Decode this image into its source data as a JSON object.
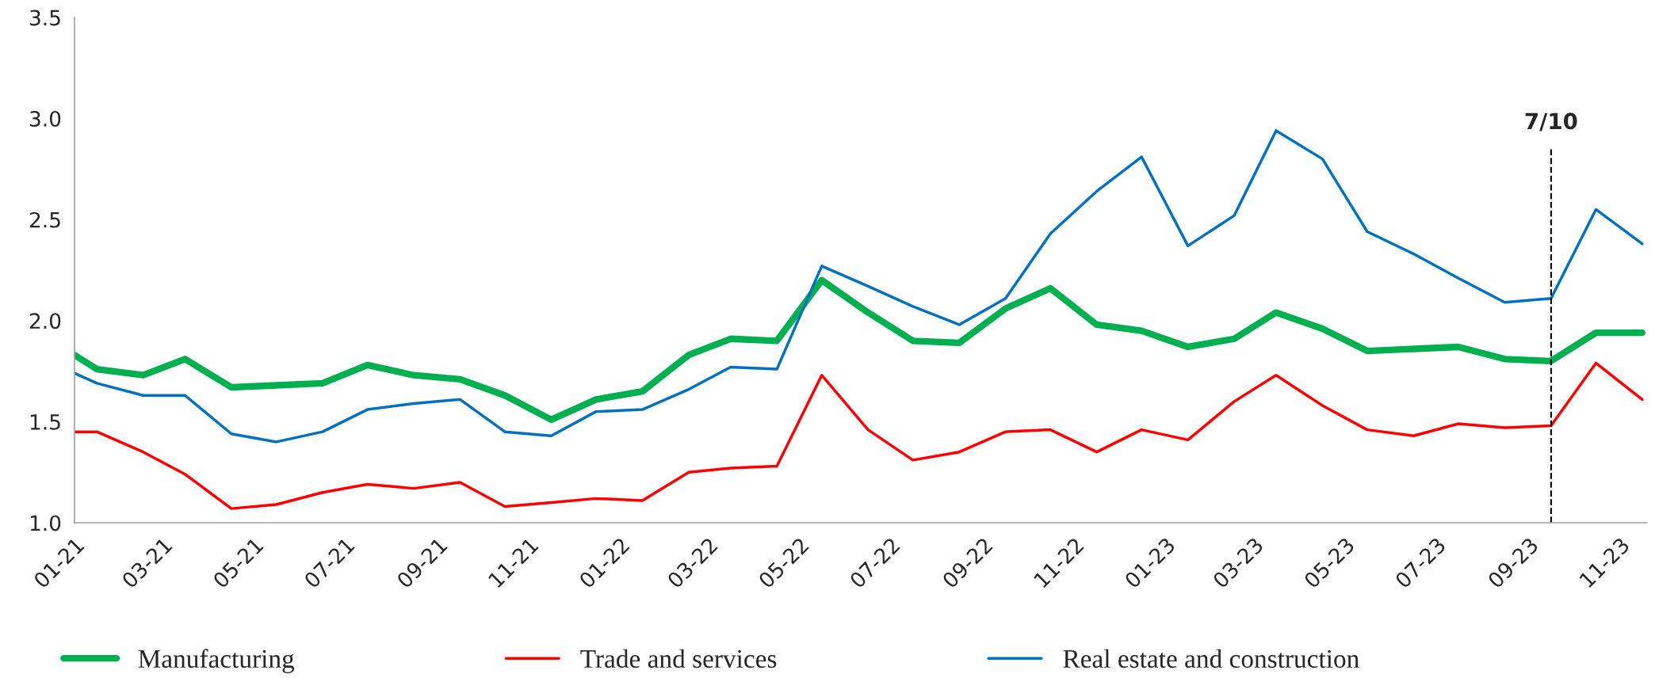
{
  "chart_data": {
    "type": "line",
    "x": [
      "2021-01-01",
      "2021-01-16",
      "2021-02-16",
      "2021-03-16",
      "2021-04-16",
      "2021-05-16",
      "2021-06-16",
      "2021-07-16",
      "2021-08-16",
      "2021-09-16",
      "2021-10-16",
      "2021-11-16",
      "2021-12-16",
      "2022-01-16",
      "2022-02-16",
      "2022-03-16",
      "2022-04-16",
      "2022-05-16",
      "2022-06-16",
      "2022-07-16",
      "2022-08-16",
      "2022-09-16",
      "2022-10-16",
      "2022-11-16",
      "2022-12-16",
      "2023-01-16",
      "2023-02-16",
      "2023-03-16",
      "2023-04-16",
      "2023-05-16",
      "2023-06-16",
      "2023-07-16",
      "2023-08-16",
      "2023-09-16",
      "2023-10-16",
      "2023-11-16"
    ],
    "series": [
      {
        "name": "Manufacturing",
        "color": "#00b050",
        "values": [
          1.83,
          1.76,
          1.73,
          1.81,
          1.67,
          1.68,
          1.69,
          1.78,
          1.73,
          1.71,
          1.63,
          1.51,
          1.61,
          1.65,
          1.83,
          1.91,
          1.9,
          2.2,
          2.04,
          1.9,
          1.89,
          2.06,
          2.16,
          1.98,
          1.95,
          1.87,
          1.91,
          2.04,
          1.96,
          1.85,
          1.86,
          1.87,
          1.81,
          1.8,
          1.94,
          1.94
        ]
      },
      {
        "name": "Trade and services",
        "color": "#ff0000",
        "values": [
          1.45,
          1.45,
          1.35,
          1.24,
          1.07,
          1.09,
          1.15,
          1.19,
          1.17,
          1.2,
          1.08,
          1.1,
          1.12,
          1.11,
          1.25,
          1.27,
          1.28,
          1.73,
          1.46,
          1.31,
          1.35,
          1.45,
          1.46,
          1.35,
          1.46,
          1.41,
          1.6,
          1.73,
          1.58,
          1.46,
          1.43,
          1.49,
          1.47,
          1.48,
          1.79,
          1.61
        ]
      },
      {
        "name": "Real estate and construction",
        "color": "#0070c0",
        "values": [
          1.74,
          1.69,
          1.63,
          1.63,
          1.44,
          1.4,
          1.45,
          1.56,
          1.59,
          1.61,
          1.45,
          1.43,
          1.55,
          1.56,
          1.66,
          1.77,
          1.76,
          2.27,
          2.17,
          2.07,
          1.98,
          2.11,
          2.43,
          2.64,
          2.81,
          2.37,
          2.52,
          2.94,
          2.8,
          2.44,
          2.33,
          2.21,
          2.09,
          2.11,
          2.55,
          2.38
        ]
      }
    ],
    "xlim": [
      "2021-01-01",
      "2023-11-19"
    ],
    "xticks": [
      {
        "value": "2021-01-01",
        "label": "01-21"
      },
      {
        "value": "2021-03-01",
        "label": "03-21"
      },
      {
        "value": "2021-05-01",
        "label": "05-21"
      },
      {
        "value": "2021-07-01",
        "label": "07-21"
      },
      {
        "value": "2021-09-01",
        "label": "09-21"
      },
      {
        "value": "2021-11-01",
        "label": "11-21"
      },
      {
        "value": "2022-01-01",
        "label": "01-22"
      },
      {
        "value": "2022-03-01",
        "label": "03-22"
      },
      {
        "value": "2022-05-01",
        "label": "05-22"
      },
      {
        "value": "2022-07-01",
        "label": "07-22"
      },
      {
        "value": "2022-09-01",
        "label": "09-22"
      },
      {
        "value": "2022-11-01",
        "label": "11-22"
      },
      {
        "value": "2023-01-01",
        "label": "01-23"
      },
      {
        "value": "2023-03-01",
        "label": "03-23"
      },
      {
        "value": "2023-05-01",
        "label": "05-23"
      },
      {
        "value": "2023-07-01",
        "label": "07-23"
      },
      {
        "value": "2023-09-01",
        "label": "09-23"
      },
      {
        "value": "2023-11-01",
        "label": "11-23"
      }
    ],
    "ylim": [
      1,
      3.5
    ],
    "yticks": [
      {
        "value": 1,
        "label": "1.0"
      },
      {
        "value": 1.5,
        "label": "1.5"
      },
      {
        "value": 2,
        "label": "2.0"
      },
      {
        "value": 2.5,
        "label": "2.5"
      },
      {
        "value": 3,
        "label": "3.0"
      },
      {
        "value": 3.5,
        "label": "3.5"
      }
    ],
    "ref_lines": [
      {
        "axis": "x",
        "value": "2023-09-16",
        "color": "#000000",
        "line_style": "dashed"
      }
    ],
    "annotations": [
      "7/10"
    ],
    "grid": false,
    "legend": "bottom",
    "marker": "none",
    "line_style": "solid"
  }
}
